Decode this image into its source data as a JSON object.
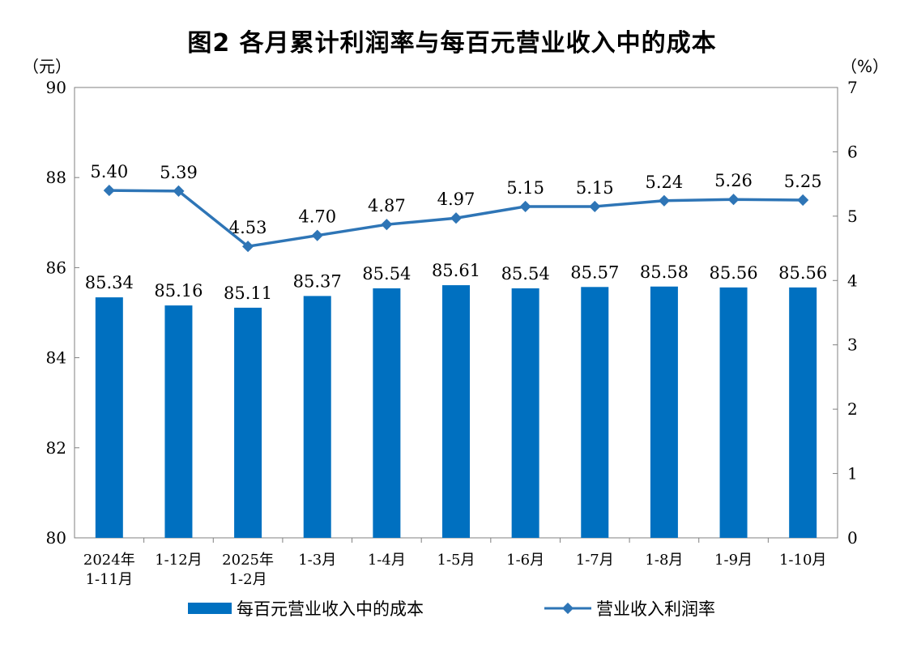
{
  "header": {
    "title": "图2  各月累计利润率与每百元营业收入中的成本",
    "left_unit": "（元）",
    "right_unit": "（%）"
  },
  "colors": {
    "bar": "#0070c0",
    "line": "#2e75b6"
  },
  "chart_data": {
    "type": "bar",
    "title": "图2  各月累计利润率与每百元营业收入中的成本",
    "categories": [
      [
        "2024年",
        "1-11月"
      ],
      [
        "1-12月"
      ],
      [
        "2025年",
        "1-2月"
      ],
      [
        "1-3月"
      ],
      [
        "1-4月"
      ],
      [
        "1-5月"
      ],
      [
        "1-6月"
      ],
      [
        "1-7月"
      ],
      [
        "1-8月"
      ],
      [
        "1-9月"
      ],
      [
        "1-10月"
      ]
    ],
    "series": [
      {
        "name": "每百元营业收入中的成本",
        "type": "bar",
        "axis": "left",
        "values": [
          85.34,
          85.16,
          85.11,
          85.37,
          85.54,
          85.61,
          85.54,
          85.57,
          85.58,
          85.56,
          85.56
        ]
      },
      {
        "name": "营业收入利润率",
        "type": "line",
        "axis": "right",
        "values": [
          5.4,
          5.39,
          4.53,
          4.7,
          4.87,
          4.97,
          5.15,
          5.15,
          5.24,
          5.26,
          5.25
        ]
      }
    ],
    "ylim_left": [
      80,
      90
    ],
    "yticks_left": [
      "80",
      "82",
      "84",
      "86",
      "88",
      "90"
    ],
    "ylim_right": [
      0,
      7
    ],
    "yticks_right": [
      "0",
      "1",
      "2",
      "3",
      "4",
      "5",
      "6",
      "7"
    ],
    "grid": false,
    "legend": "bottom"
  }
}
